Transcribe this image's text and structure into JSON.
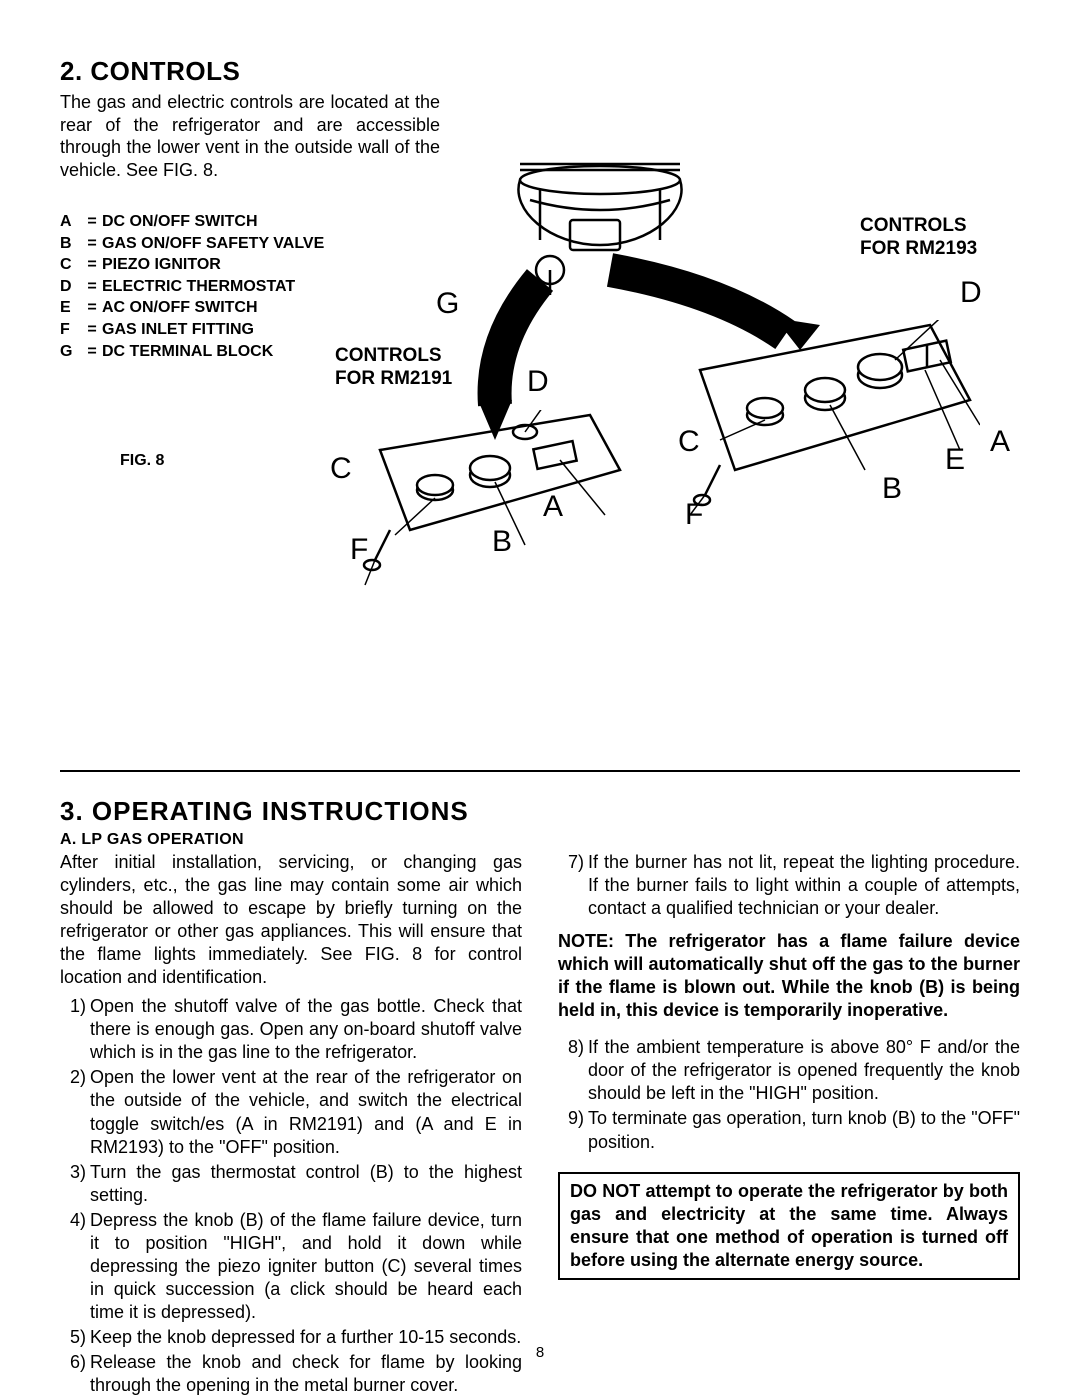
{
  "section2": {
    "title": "2. CONTROLS",
    "intro": "The gas and electric controls are located at the rear of the refrigerator and are accessible through the lower vent in the outside wall of the vehicle. See FIG. 8.",
    "legend": [
      {
        "letter": "A",
        "desc": "DC ON/OFF SWITCH"
      },
      {
        "letter": "B",
        "desc": "GAS ON/OFF SAFETY VALVE"
      },
      {
        "letter": "C",
        "desc": "PIEZO IGNITOR"
      },
      {
        "letter": "D",
        "desc": "ELECTRIC THERMOSTAT"
      },
      {
        "letter": "E",
        "desc": "AC ON/OFF SWITCH"
      },
      {
        "letter": "F",
        "desc": "GAS INLET FITTING"
      },
      {
        "letter": "G",
        "desc": "DC TERMINAL BLOCK"
      }
    ],
    "figLabel": "FIG. 8",
    "caption2191": "CONTROLS\nFOR RM2191",
    "caption2193": "CONTROLS\nFOR RM2193"
  },
  "section3": {
    "title": "3. OPERATING INSTRUCTIONS",
    "subhead": "A. LP GAS OPERATION",
    "intro": "After initial installation, servicing, or changing gas cylinders, etc., the gas line may contain some air which should be allowed to escape by briefly turning on the refrigerator or other gas appliances. This will ensure that the flame lights immediately. See FIG. 8 for control location and identification.",
    "steps1to6": [
      "Open the shutoff valve of the gas bottle. Check that there is enough gas. Open any on-board shutoff valve which is in the gas line to the refrigerator.",
      "Open the lower vent at the rear of the refrigerator on the outside of the vehicle, and switch the electrical toggle switch/es (A in RM2191) and (A and E in RM2193) to the \"OFF\" position.",
      "Turn the gas  thermostat control (B) to the highest setting.",
      "Depress the knob (B) of the flame failure device, turn it to position \"HIGH\", and hold it down while depressing the piezo igniter button (C) several times in quick succession (a click should be heard each time it is depressed).",
      "Keep the knob depressed for a further 10-15 seconds.",
      "Release the knob and check for flame by looking through the opening in the metal burner cover."
    ],
    "step7": "If the burner has not lit, repeat the lighting procedure. If the burner fails to light within a couple of attempts, contact a qualified technician or your dealer.",
    "note": "NOTE: The refrigerator has a flame failure device which will automatically shut off the gas to the burner if the flame is blown out. While the knob (B) is being held in, this device is temporarily inoperative.",
    "steps8to9": [
      "If the ambient temperature is above 80° F and/or the door of the refrigerator is opened frequently the knob should be left in the \"HIGH\" position.",
      "To terminate gas operation, turn knob (B) to the \"OFF\" position."
    ],
    "warning": "DO NOT attempt to operate the refrigerator by both gas and electricity at the same time. Always ensure that one method of operation is turned off before using the alternate energy source."
  },
  "pageNumber": "8"
}
